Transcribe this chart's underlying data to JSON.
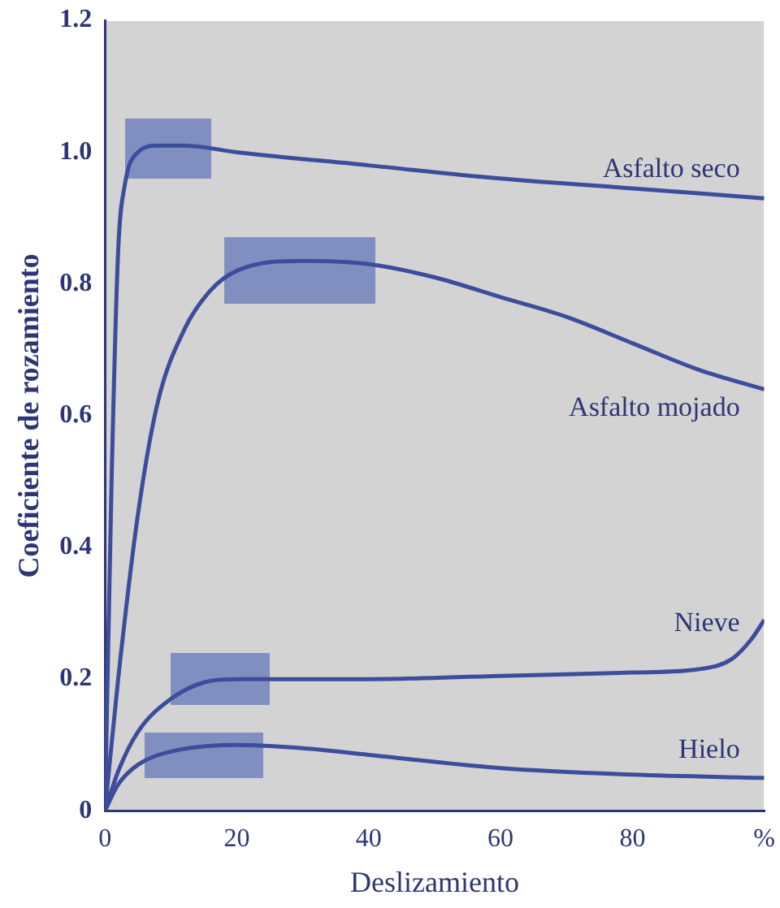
{
  "chart_data": {
    "type": "line",
    "xlabel": "Deslizamiento",
    "ylabel": "Coeficiente de rozamiento",
    "xlim": [
      0,
      100
    ],
    "ylim": [
      0,
      1.2
    ],
    "xticks": [
      0,
      20,
      40,
      60,
      80,
      {
        "value": 100,
        "label": "%"
      }
    ],
    "yticks": [
      0,
      0.2,
      0.4,
      0.6,
      0.8,
      {
        "value": 1,
        "label": "1.0"
      },
      1.2
    ],
    "grid": false,
    "legend": false,
    "marker": "none",
    "line_style": "solid",
    "series": [
      {
        "name": "Asfalto seco",
        "color": "#3d4d9c",
        "x": [
          0,
          1,
          2,
          3,
          5,
          8,
          12,
          20,
          40,
          60,
          80,
          100
        ],
        "values": [
          0,
          0.5,
          0.85,
          0.95,
          1.0,
          1.01,
          1.01,
          1.0,
          0.98,
          0.96,
          0.945,
          0.93
        ]
      },
      {
        "name": "Asfalto mojado",
        "color": "#3d4d9c",
        "x": [
          0,
          2,
          5,
          8,
          12,
          16,
          20,
          30,
          40,
          50,
          60,
          70,
          80,
          90,
          100
        ],
        "values": [
          0,
          0.2,
          0.45,
          0.62,
          0.73,
          0.79,
          0.82,
          0.835,
          0.83,
          0.81,
          0.78,
          0.75,
          0.71,
          0.67,
          0.64
        ]
      },
      {
        "name": "Nieve",
        "color": "#3d4d9c",
        "x": [
          0,
          2,
          5,
          10,
          15,
          20,
          40,
          60,
          80,
          90,
          95,
          98,
          100
        ],
        "values": [
          0,
          0.06,
          0.12,
          0.17,
          0.195,
          0.2,
          0.2,
          0.205,
          0.21,
          0.215,
          0.23,
          0.26,
          0.29
        ]
      },
      {
        "name": "Hielo",
        "color": "#3d4d9c",
        "x": [
          0,
          2,
          5,
          10,
          20,
          30,
          40,
          60,
          80,
          100
        ],
        "values": [
          0,
          0.04,
          0.07,
          0.09,
          0.1,
          0.095,
          0.085,
          0.065,
          0.055,
          0.05
        ]
      }
    ]
  }
}
